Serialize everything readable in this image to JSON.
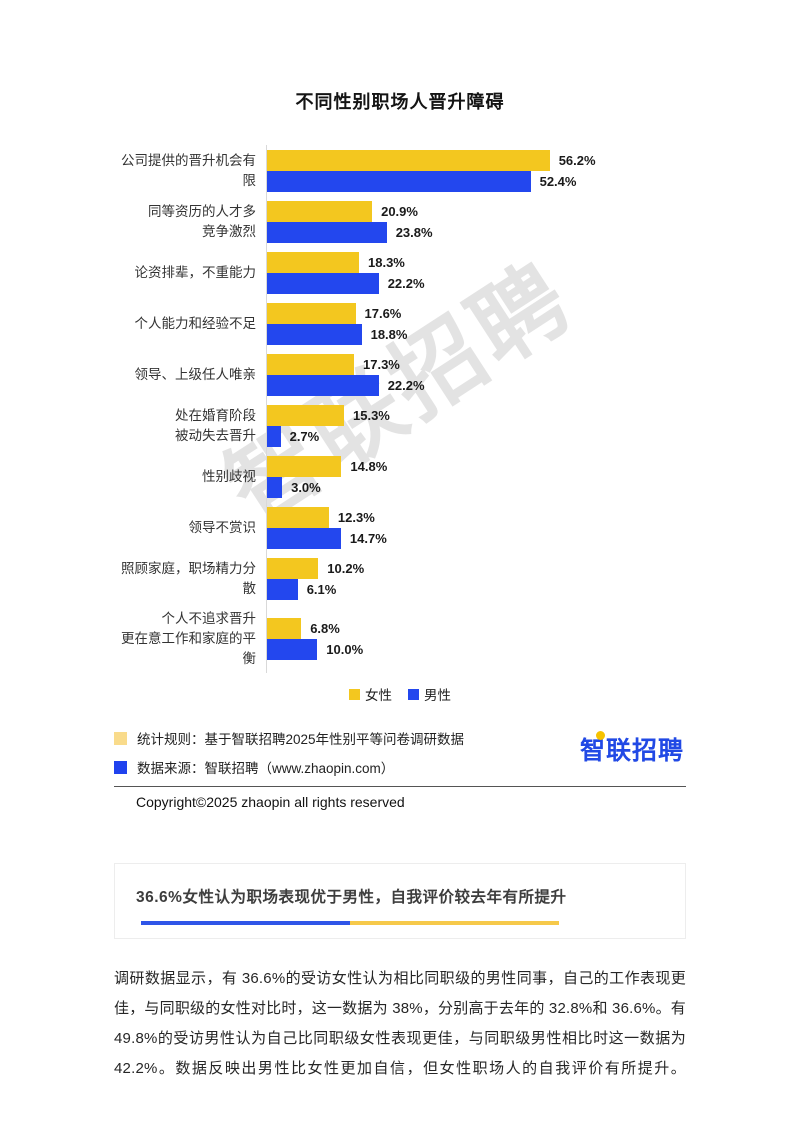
{
  "title": "不同性别职场人晋升障碍",
  "watermark": "智联招聘",
  "chart_data": {
    "type": "bar",
    "orientation": "horizontal",
    "title": "不同性别职场人晋升障碍",
    "unit": "%",
    "xlim": [
      0,
      60
    ],
    "grid": false,
    "legend_position": "bottom",
    "categories": [
      [
        "公司提供的晋升机会有限"
      ],
      [
        "同等资历的人才多",
        "竞争激烈"
      ],
      [
        "论资排辈，不重能力"
      ],
      [
        "个人能力和经验不足"
      ],
      [
        "领导、上级任人唯亲"
      ],
      [
        "处在婚育阶段",
        "被动失去晋升"
      ],
      [
        "性别歧视"
      ],
      [
        "领导不赏识"
      ],
      [
        "照顾家庭，职场精力分散"
      ],
      [
        "个人不追求晋升",
        "更在意工作和家庭的平衡"
      ]
    ],
    "series": [
      {
        "name": "女性",
        "color": "#F3C71F",
        "values": [
          56.2,
          20.9,
          18.3,
          17.6,
          17.3,
          15.3,
          14.8,
          12.3,
          10.2,
          6.8
        ]
      },
      {
        "name": "男性",
        "color": "#2347EE",
        "values": [
          52.4,
          23.8,
          22.2,
          18.8,
          22.2,
          2.7,
          3.0,
          14.7,
          6.1,
          10.0
        ]
      }
    ]
  },
  "legend": [
    {
      "label": "女性",
      "color": "#F3C71F"
    },
    {
      "label": "男性",
      "color": "#2347EE"
    }
  ],
  "footnotes": [
    {
      "label": "统计规则：基于智联招聘2025年性别平等问卷调研数据",
      "color": "#F9DB8B"
    },
    {
      "label": "数据来源：智联招聘（www.zhaopin.com）",
      "color": "#2042EE"
    }
  ],
  "logo_text": "智联招聘",
  "copyright": "Copyright©2025 zhaopin all rights reserved",
  "section": {
    "headline": "36.6%女性认为职场表现优于男性，自我评价较去年有所提升",
    "underline_colors": [
      "#2F55E8",
      "#F6C94A"
    ],
    "paragraph": "调研数据显示，有 36.6%的受访女性认为相比同职级的男性同事，自己的工作表现更佳，与同职级的女性对比时，这一数据为 38%，分别高于去年的 32.8%和 36.6%。有 49.8%的受访男性认为自己比同职级女性表现更佳，与同职级男性相比时这一数据为 42.2%。数据反映出男性比女性更加自信，但女性职场人的自我评价有所提升。"
  }
}
